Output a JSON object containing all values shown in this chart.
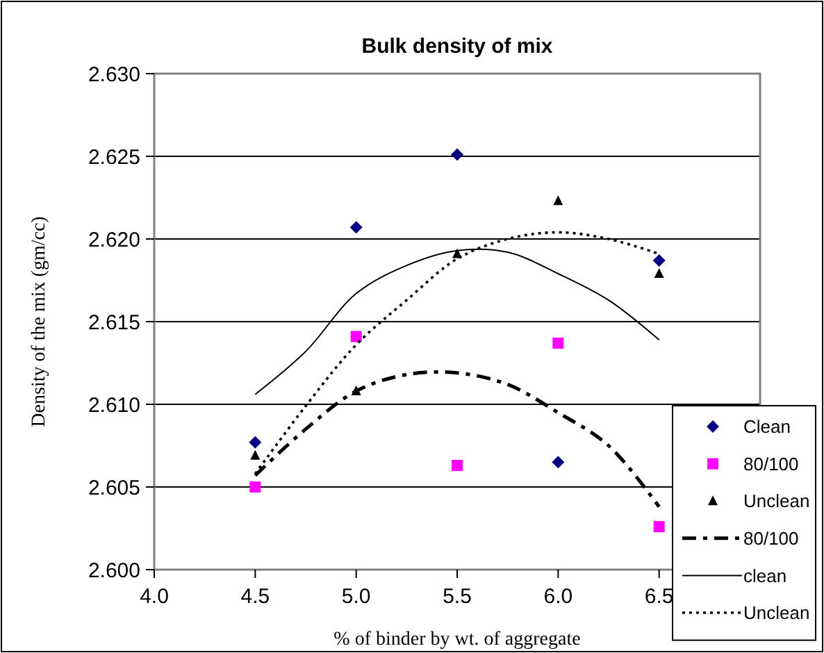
{
  "chart_data": {
    "type": "scatter",
    "title": "Bulk density of mix",
    "xlabel": "% of binder by wt. of aggregate",
    "ylabel": "Density of the mix (gm/cc)",
    "xlim": [
      4.0,
      7.0
    ],
    "xticks": [
      {
        "value": 4,
        "label": "4.0"
      },
      {
        "value": 4.5,
        "label": "4.5"
      },
      {
        "value": 5,
        "label": "5.0"
      },
      {
        "value": 5.5,
        "label": "5.5"
      },
      {
        "value": 6,
        "label": "6.0"
      },
      {
        "value": 6.5,
        "label": "6.5"
      }
    ],
    "ylim": [
      2.6,
      2.63
    ],
    "yticks": [
      {
        "value": 2.6,
        "label": "2.600"
      },
      {
        "value": 2.605,
        "label": "2.605"
      },
      {
        "value": 2.61,
        "label": "2.610"
      },
      {
        "value": 2.615,
        "label": "2.615"
      },
      {
        "value": 2.62,
        "label": "2.620"
      },
      {
        "value": 2.625,
        "label": "2.625"
      },
      {
        "value": 2.63,
        "label": "2.630"
      }
    ],
    "grid": "y",
    "legend": "bottom right",
    "series": [
      {
        "name": "Clean",
        "marker": "diamond",
        "color": "#000080",
        "x": [
          4.5,
          5.0,
          5.5,
          6.0,
          6.5
        ],
        "values": [
          2.6077,
          2.6207,
          2.6251,
          2.6065,
          2.6187
        ]
      },
      {
        "name": "80/100",
        "marker": "square",
        "color": "#ff00ff",
        "x": [
          4.5,
          5.0,
          5.5,
          6.0,
          6.5
        ],
        "values": [
          2.605,
          2.6141,
          2.6063,
          2.6137,
          2.6026
        ]
      },
      {
        "name": "Unclean",
        "marker": "triangle",
        "color": "#000000",
        "x": [
          4.5,
          5.0,
          5.5,
          6.0,
          6.5
        ],
        "values": [
          2.6069,
          2.6108,
          2.6191,
          2.6223,
          2.6179
        ]
      },
      {
        "name": "80/100",
        "type": "line",
        "line_style": "dashed",
        "color": "#000000",
        "x": [
          4.5,
          4.75,
          5.0,
          5.25,
          5.5,
          5.75,
          6.0,
          6.25,
          6.5
        ],
        "values": [
          2.6057,
          2.6085,
          2.6108,
          2.6118,
          2.6119,
          2.6112,
          2.6095,
          2.6075,
          2.6038
        ]
      },
      {
        "name": "clean",
        "type": "line",
        "line_style": "solid",
        "color": "#000000",
        "x": [
          4.5,
          4.75,
          5.0,
          5.25,
          5.5,
          5.75,
          6.0,
          6.25,
          6.5
        ],
        "values": [
          2.6106,
          2.6132,
          2.6167,
          2.6184,
          2.6193,
          2.6192,
          2.6179,
          2.6163,
          2.6139
        ]
      },
      {
        "name": "Unclean",
        "type": "line",
        "line_style": "dotted",
        "color": "#000000",
        "x": [
          4.5,
          4.75,
          5.0,
          5.25,
          5.5,
          5.75,
          6.0,
          6.25,
          6.5
        ],
        "values": [
          2.6058,
          2.6099,
          2.6136,
          2.6163,
          2.6188,
          2.62,
          2.6204,
          2.62,
          2.6191
        ]
      }
    ]
  }
}
